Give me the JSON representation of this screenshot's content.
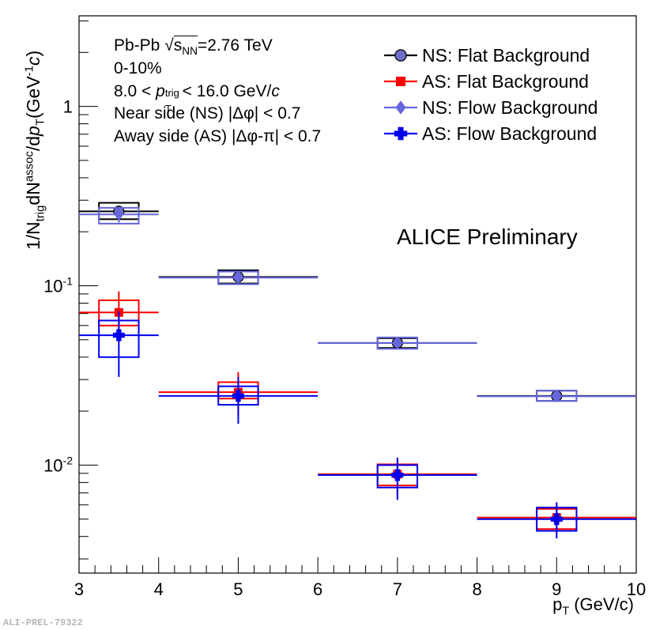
{
  "chart_data": {
    "type": "scatter",
    "title": "",
    "xlabel": "p_T (GeV/c)",
    "ylabel": "1/N_trig dN^assoc/dp_T (GeV^-1 c)",
    "xlim": [
      3,
      10
    ],
    "ylim": [
      0.0025,
      3.2
    ],
    "yscale": "log",
    "x_ticks": [
      "3",
      "4",
      "5",
      "6",
      "7",
      "8",
      "9",
      "10"
    ],
    "y_ticks": [
      {
        "value": 1,
        "base": "1",
        "exp": ""
      },
      {
        "value": 0.1,
        "base": "10",
        "exp": "-1"
      },
      {
        "value": 0.01,
        "base": "10",
        "exp": "-2"
      }
    ],
    "legend": {
      "position": "top-right",
      "entries": [
        "NS: Flat Background",
        "AS: Flat Background",
        "NS: Flow Background",
        "AS: Flow Background"
      ]
    },
    "series": [
      {
        "name": "NS: Flat Background",
        "color": "#000000",
        "marker": "circle",
        "x": [
          3.5,
          5,
          7,
          9
        ],
        "xerr": [
          0.5,
          1,
          1,
          1
        ],
        "y": [
          0.26,
          0.112,
          0.048,
          0.0243
        ],
        "ylo": [
          0.24,
          0.104,
          0.0455,
          0.0232
        ],
        "yhi": [
          0.28,
          0.12,
          0.0505,
          0.0255
        ],
        "syslo": [
          0.235,
          0.103,
          0.045,
          0.0228
        ],
        "syshi": [
          0.29,
          0.122,
          0.051,
          0.026
        ]
      },
      {
        "name": "AS: Flat Background",
        "color": "#ff0000",
        "marker": "square",
        "x": [
          3.5,
          5,
          7,
          9
        ],
        "xerr": [
          0.5,
          1,
          1,
          1
        ],
        "y": [
          0.071,
          0.0255,
          0.0089,
          0.0051
        ],
        "ylo": [
          0.053,
          0.019,
          0.0068,
          0.0042
        ],
        "yhi": [
          0.093,
          0.033,
          0.011,
          0.006
        ],
        "syslo": [
          0.06,
          0.0235,
          0.0077,
          0.0044
        ],
        "syshi": [
          0.083,
          0.029,
          0.0101,
          0.0057
        ]
      },
      {
        "name": "NS: Flow Background",
        "color": "#6666dd",
        "marker": "diamond",
        "x": [
          3.5,
          5,
          7,
          9
        ],
        "xerr": [
          0.5,
          1,
          1,
          1
        ],
        "y": [
          0.25,
          0.111,
          0.048,
          0.0242
        ],
        "ylo": [
          0.225,
          0.104,
          0.0455,
          0.0232
        ],
        "yhi": [
          0.272,
          0.119,
          0.0505,
          0.0255
        ],
        "syslo": [
          0.222,
          0.102,
          0.0445,
          0.0228
        ],
        "syshi": [
          0.272,
          0.12,
          0.0515,
          0.026
        ]
      },
      {
        "name": "AS: Flow Background",
        "color": "#0000ee",
        "marker": "cross",
        "x": [
          3.5,
          5,
          7,
          9
        ],
        "xerr": [
          0.5,
          1,
          1,
          1
        ],
        "y": [
          0.053,
          0.0243,
          0.0088,
          0.005
        ],
        "ylo": [
          0.031,
          0.017,
          0.0064,
          0.0039
        ],
        "yhi": [
          0.072,
          0.031,
          0.011,
          0.0062
        ],
        "syslo": [
          0.04,
          0.0217,
          0.0075,
          0.0043
        ],
        "syshi": [
          0.064,
          0.0275,
          0.01,
          0.0058
        ]
      }
    ],
    "annotations": {
      "system_prefix": "Pb-Pb ",
      "sqrt_symbol": "√",
      "s_label": "s",
      "nn_sub": "NN",
      "energy": "=2.76 TeV",
      "centrality": "0-10%",
      "trig_prefix": "8.0 < ",
      "p_letter": "p",
      "t_sub": "T",
      "trig_sup": "trig",
      "trig_suffix": " < 16.0 GeV/",
      "c_letter": "c",
      "near_side": "Near side (NS) |Δφ| < 0.7",
      "away_side": "Away side (AS) |Δφ-π| < 0.7",
      "preliminary": "ALICE Preliminary",
      "figure_id": "ALI-PREL-79322"
    },
    "axis_title_parts": {
      "y_pre": "1/N",
      "y_trig": "trig",
      "y_dn": "dN",
      "y_assoc": "assoc",
      "y_slash": "/d",
      "y_p": "p",
      "y_t": "T",
      "y_unit_open": "(GeV",
      "y_unit_exp": "-1",
      "y_c": "c",
      "y_unit_close": ")",
      "x_p": "p",
      "x_t": "T",
      "x_unit": " (GeV/c)"
    }
  }
}
